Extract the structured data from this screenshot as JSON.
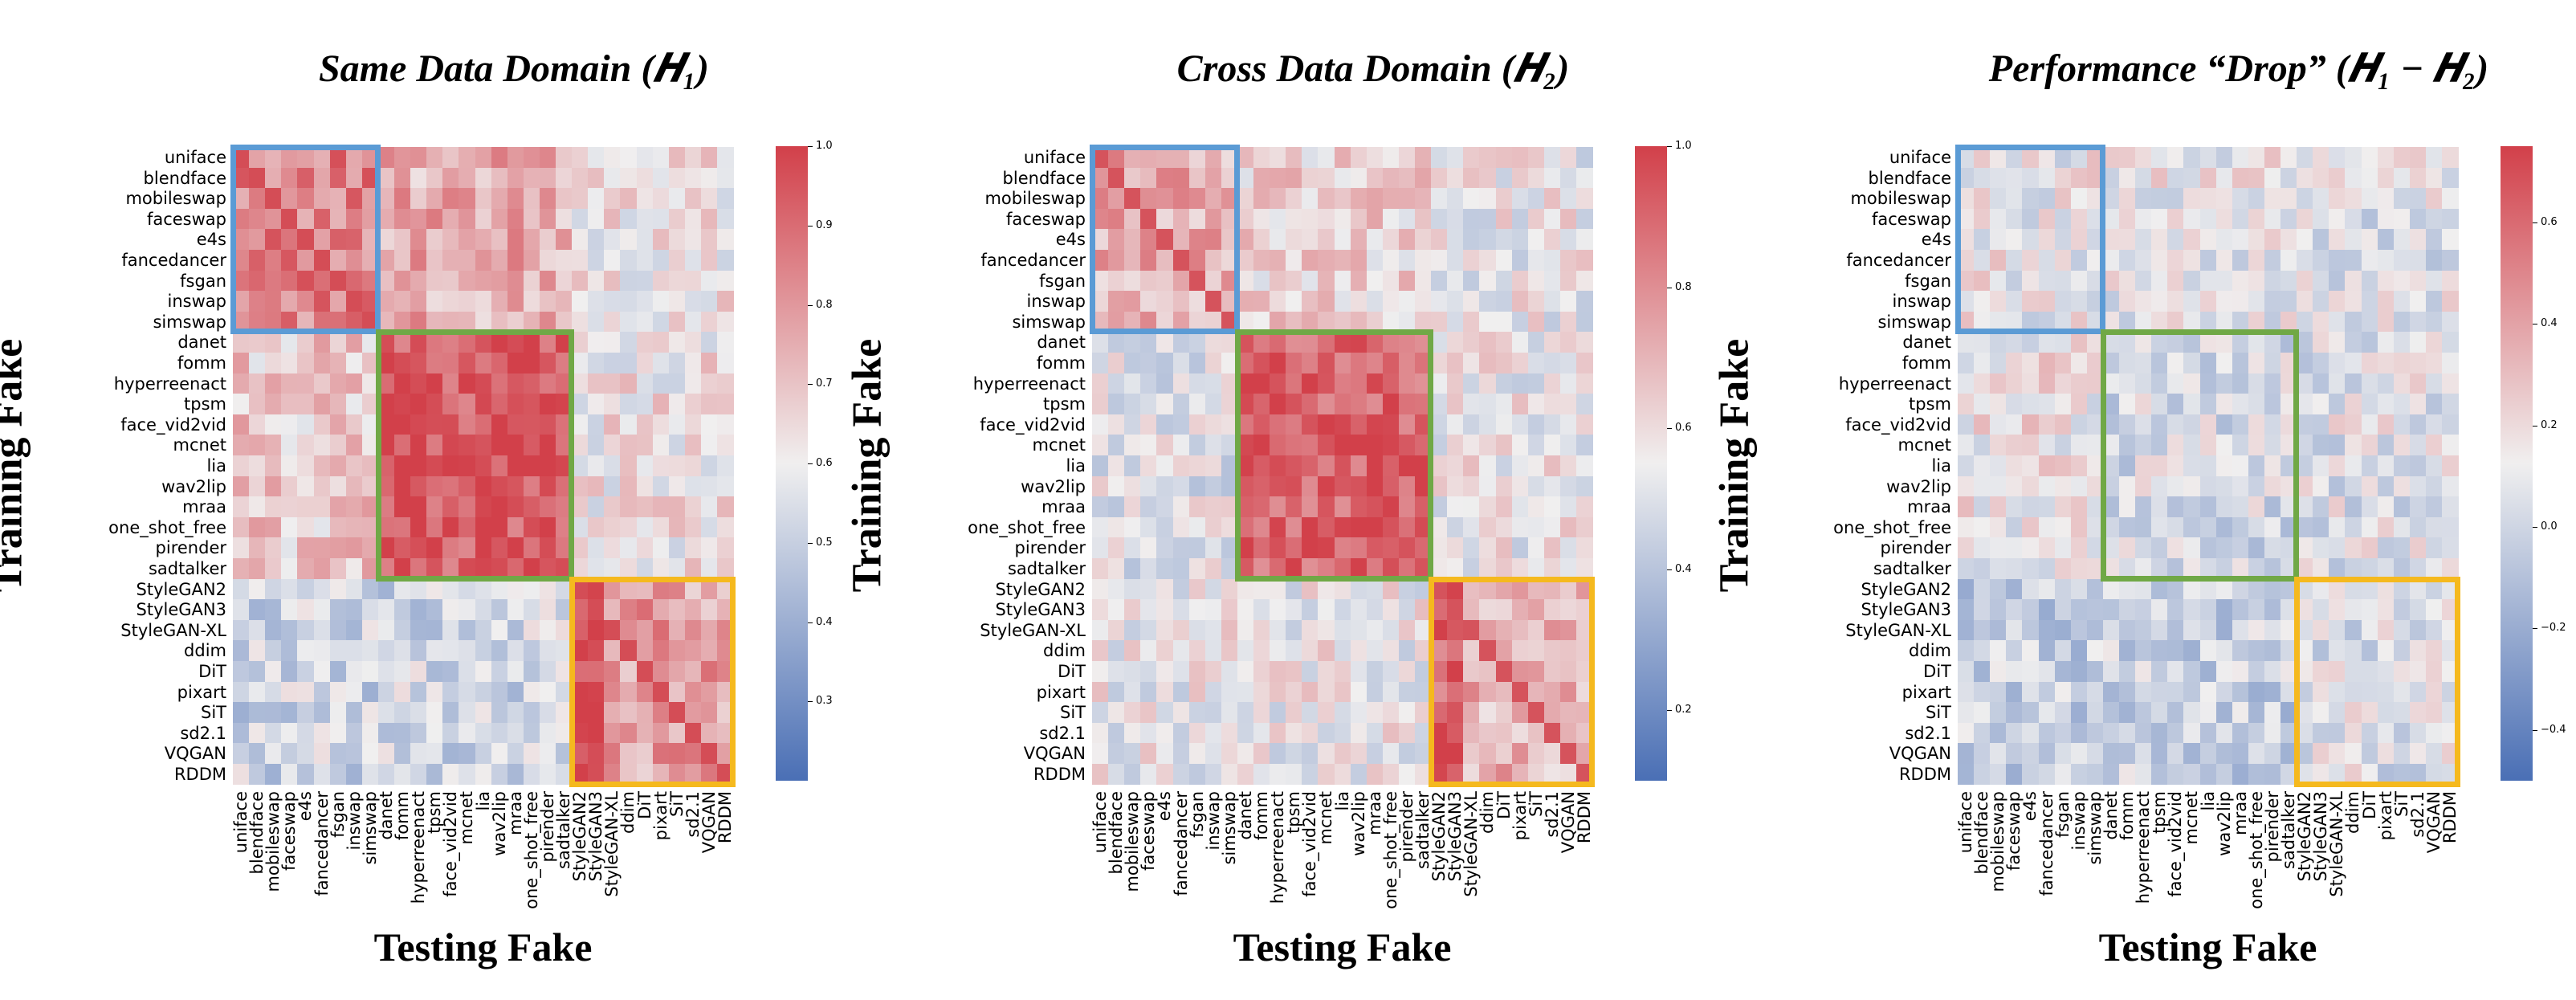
{
  "labels": [
    "uniface",
    "blendface",
    "mobileswap",
    "faceswap",
    "e4s",
    "fancedancer",
    "fsgan",
    "inswap",
    "simswap",
    "danet",
    "fomm",
    "hyperreenact",
    "tpsm",
    "face_vid2vid",
    "mcnet",
    "lia",
    "wav2lip",
    "mraa",
    "one_shot_free",
    "pirender",
    "sadtalker",
    "StyleGAN2",
    "StyleGAN3",
    "StyleGAN-XL",
    "ddim",
    "DiT",
    "pixart",
    "SiT",
    "sd2.1",
    "VQGAN",
    "RDDM"
  ],
  "xlabel": "Testing Fake",
  "ylabel": "Training Fake",
  "colors": {
    "low": "#4a6fb5",
    "mid": "#f0efef",
    "high": "#d2404a",
    "box_blue": "#5b9bd5",
    "box_green": "#70a846",
    "box_orange": "#f5b91e"
  },
  "chart_data": [
    {
      "type": "heatmap",
      "title": "Same Data Domain (𝑯₁)",
      "xlabel": "Testing Fake",
      "ylabel": "Training Fake",
      "vmin": 0.2,
      "vmax": 1.0,
      "colorbar_ticks": [
        "1.0",
        "0.9",
        "0.8",
        "0.7",
        "0.6",
        "0.5",
        "0.4",
        "0.3"
      ],
      "colorbar_tick_values": [
        1.0,
        0.9,
        0.8,
        0.7,
        0.6,
        0.5,
        0.4,
        0.3
      ],
      "block_means": [
        [
          0.85,
          0.75,
          0.62
        ],
        [
          0.68,
          0.95,
          0.62
        ],
        [
          0.52,
          0.53,
          0.78
        ]
      ],
      "diag": 0.97,
      "groups": [
        [
          0,
          8
        ],
        [
          9,
          20
        ],
        [
          21,
          30
        ]
      ]
    },
    {
      "type": "heatmap",
      "title": "Cross Data Domain (𝑯₂)",
      "xlabel": "Testing Fake",
      "ylabel": "Training Fake",
      "vmin": 0.1,
      "vmax": 1.0,
      "colorbar_ticks": [
        "1.0",
        "0.8",
        "0.6",
        "0.4",
        "0.2"
      ],
      "colorbar_tick_values": [
        1.0,
        0.8,
        0.6,
        0.4,
        0.2
      ],
      "block_means": [
        [
          0.72,
          0.62,
          0.55
        ],
        [
          0.52,
          0.92,
          0.55
        ],
        [
          0.55,
          0.55,
          0.7
        ]
      ],
      "diag": 0.95,
      "groups": [
        [
          0,
          8
        ],
        [
          9,
          20
        ],
        [
          21,
          30
        ]
      ]
    },
    {
      "type": "heatmap",
      "title": "Performance “Drop” (𝑯₁ − 𝑯₂)",
      "xlabel": "Testing Fake",
      "ylabel": "Training Fake",
      "vmin": -0.5,
      "vmax": 0.75,
      "colorbar_ticks": [
        "0.6",
        "0.4",
        "0.2",
        "0.0",
        "−0.2",
        "−0.4"
      ],
      "colorbar_tick_values": [
        0.6,
        0.4,
        0.2,
        0.0,
        -0.2,
        -0.4
      ],
      "block_means": [
        [
          0.12,
          0.12,
          0.08
        ],
        [
          0.15,
          0.04,
          0.08
        ],
        [
          -0.04,
          -0.02,
          0.07
        ]
      ],
      "diag": 0.03,
      "groups": [
        [
          0,
          8
        ],
        [
          9,
          20
        ],
        [
          21,
          30
        ]
      ]
    }
  ]
}
